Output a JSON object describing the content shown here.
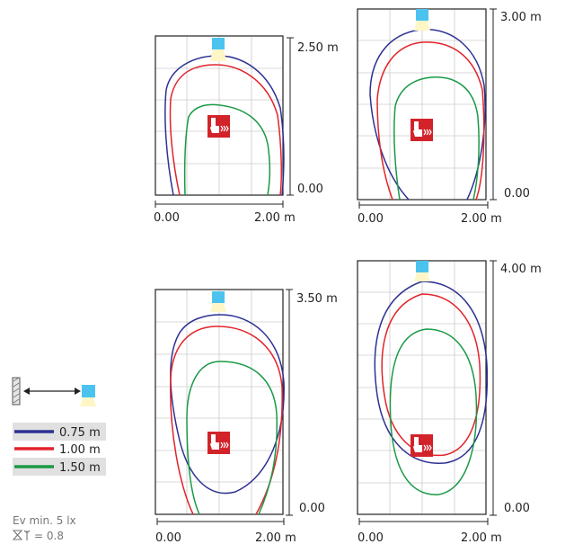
{
  "panels": [
    {
      "height_label": "2.50 m",
      "zero_label": "0.00",
      "x_start_label": "0.00",
      "x_end_label": "2.00 m"
    },
    {
      "height_label": "3.00 m",
      "zero_label": "0.00",
      "x_start_label": "0.00",
      "x_end_label": "2.00 m"
    },
    {
      "height_label": "3.50 m",
      "zero_label": "0.00",
      "x_start_label": "0.00",
      "x_end_label": "2.00 m"
    },
    {
      "height_label": "4.00 m",
      "zero_label": "0.00",
      "x_start_label": "0.00",
      "x_end_label": "2.00 m"
    }
  ],
  "legend": [
    {
      "label": "0.75 m",
      "color": "#2e3192"
    },
    {
      "label": "1.00 m",
      "color": "#e2232a"
    },
    {
      "label": "1.50 m",
      "color": "#1a9a46"
    }
  ],
  "note": {
    "ev_label": "Ev min. 5 lx",
    "maintenance_label": "= 0.8"
  },
  "colors": {
    "luminaire": "#4cc3ee",
    "sign": "#d2232a",
    "grid": "#cccccc",
    "frame": "#222222"
  }
}
